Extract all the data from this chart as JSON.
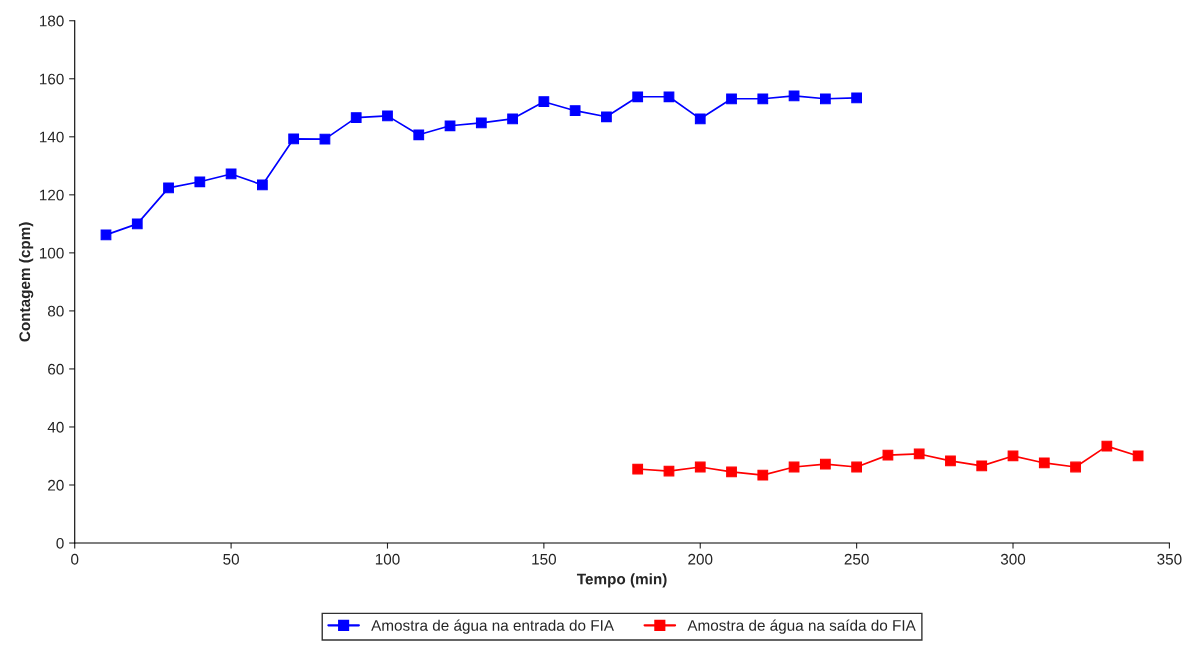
{
  "chart_data": {
    "type": "line",
    "xlabel": "Tempo (min)",
    "ylabel": "Contagem (cpm)",
    "xlim": [
      0,
      350
    ],
    "xticks": [
      0,
      50,
      100,
      150,
      200,
      250,
      300,
      350
    ],
    "ylim": [
      0,
      180
    ],
    "yticks": [
      0,
      20,
      40,
      60,
      80,
      100,
      120,
      140,
      160,
      180
    ],
    "grid": false,
    "legend": "bottom",
    "marker": "square",
    "line_style": "solid",
    "series": [
      {
        "name": "Amostra de água na entrada do FIA",
        "color": "#0000ff",
        "x": [
          10,
          20,
          30,
          40,
          50,
          60,
          70,
          80,
          90,
          100,
          110,
          120,
          130,
          140,
          150,
          160,
          170,
          180,
          190,
          200,
          210,
          220,
          230,
          240,
          250
        ],
        "values": [
          106.2,
          110,
          122.4,
          124.5,
          127.2,
          123.4,
          139.3,
          139.2,
          146.6,
          147.2,
          140.7,
          143.8,
          144.8,
          146.2,
          152.1,
          149,
          146.9,
          153.8,
          153.8,
          146.2,
          153.1,
          153.1,
          154.1,
          153.1,
          153.4
        ]
      },
      {
        "name": "Amostra de água na saída do FIA",
        "color": "#ff0000",
        "x": [
          180,
          190,
          200,
          210,
          220,
          230,
          240,
          250,
          260,
          270,
          280,
          290,
          300,
          310,
          320,
          330,
          340
        ],
        "values": [
          25.5,
          24.8,
          26.2,
          24.5,
          23.4,
          26.2,
          27.2,
          26.2,
          30.3,
          30.7,
          28.3,
          26.6,
          30,
          27.6,
          26.2,
          33.4,
          30
        ]
      }
    ]
  }
}
